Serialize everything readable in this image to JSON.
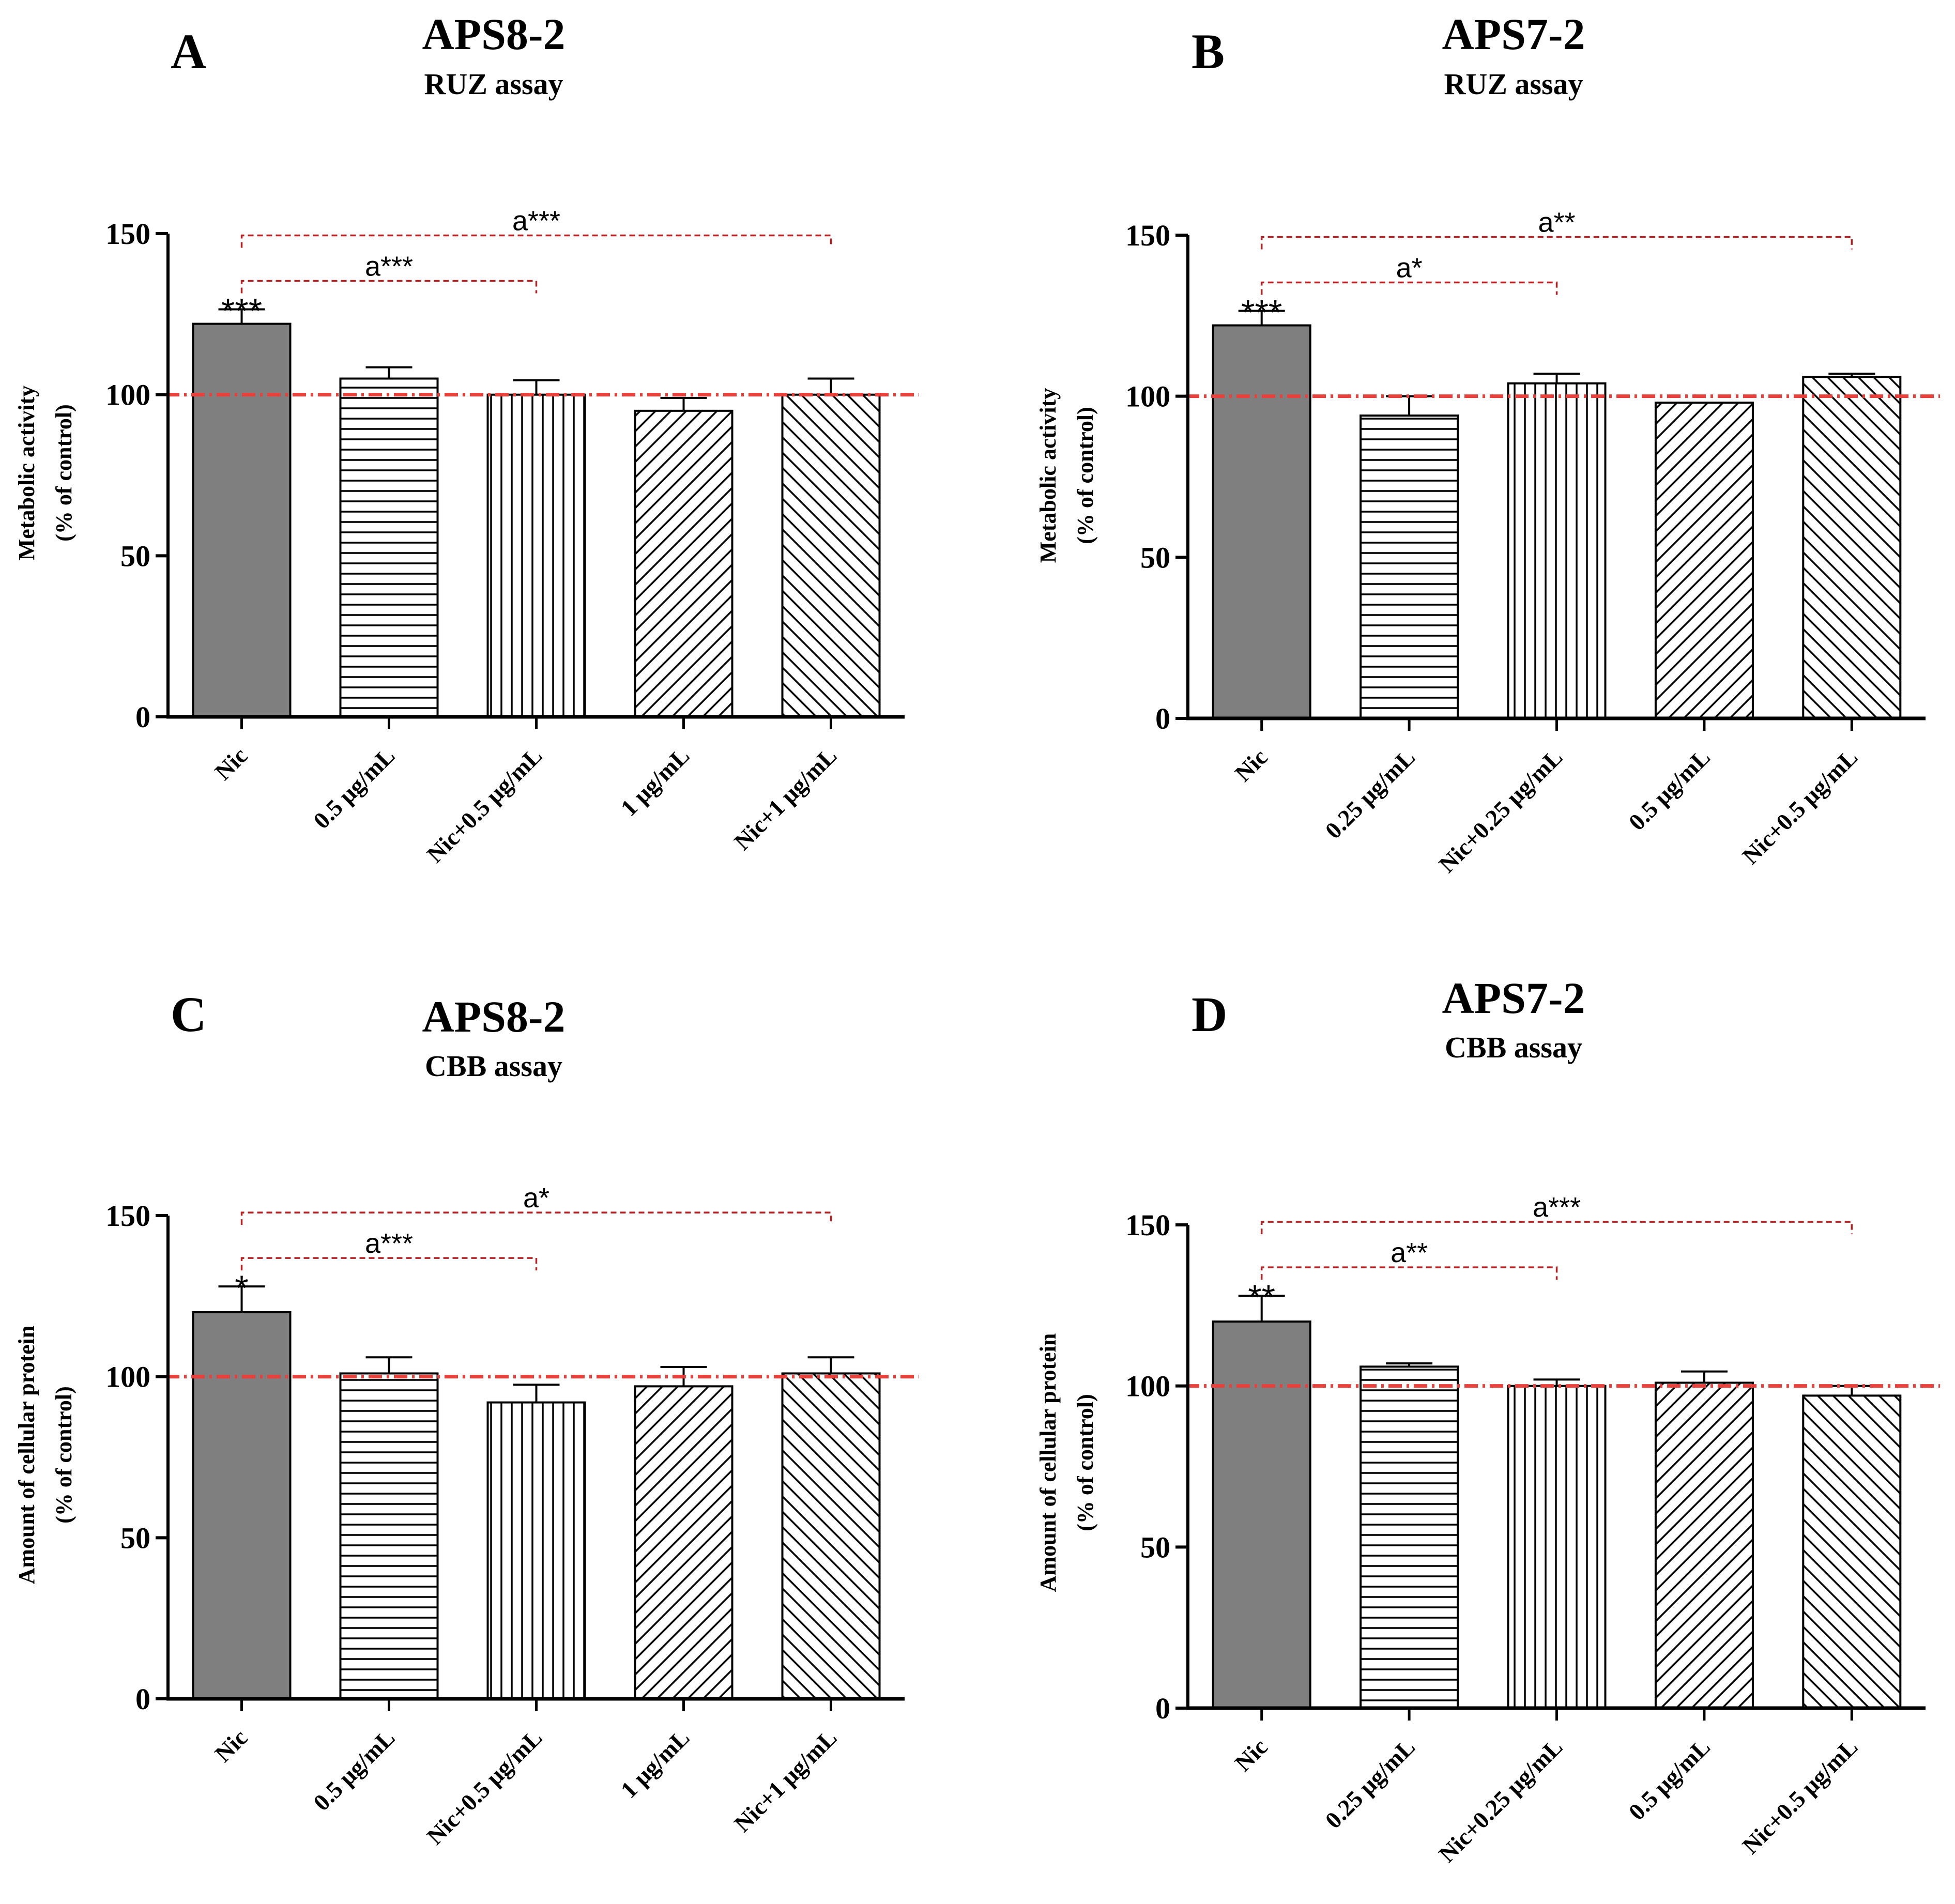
{
  "colors": {
    "nic_bar": "#7f7f7f",
    "reference_line": "#e8413c",
    "bracket": "#b22222",
    "axis": "#000000"
  },
  "chart_data": [
    {
      "panel": "A",
      "type": "bar",
      "title": "APS8-2",
      "subtitle": "RUZ assay",
      "ylabel": [
        "Metabolic activity",
        "(%  of control)"
      ],
      "ylim": [
        0,
        150
      ],
      "yticks": [
        "0",
        "50",
        "100",
        "150"
      ],
      "reference_line": 100,
      "categories": [
        "Nic",
        "0.5 μg/mL",
        "Nic+0.5 μg/mL",
        "1 μg/mL",
        "Nic+1 μg/mL"
      ],
      "patterns": [
        "solid",
        "hlines",
        "vlines",
        "diag-up",
        "diag-down"
      ],
      "values": [
        122,
        105,
        100,
        95,
        100
      ],
      "errors": [
        4.5,
        3.5,
        4.5,
        4,
        5
      ],
      "bar_labels": [
        "***",
        "",
        "",
        "",
        ""
      ],
      "brackets": [
        {
          "from": 0,
          "to": 2,
          "label": "a***",
          "level": 1
        },
        {
          "from": 0,
          "to": 4,
          "label": "a***",
          "level": 2
        }
      ]
    },
    {
      "panel": "B",
      "type": "bar",
      "title": "APS7-2",
      "subtitle": "RUZ assay",
      "ylabel": [
        "Metabolic activity",
        "(%  of control)"
      ],
      "ylim": [
        0,
        150
      ],
      "yticks": [
        "0",
        "50",
        "100",
        "150"
      ],
      "reference_line": 100,
      "categories": [
        "Nic",
        "0.25 μg/mL",
        "Nic+0.25 μg/mL",
        "0.5 μg/mL",
        "Nic+0.5 μg/mL"
      ],
      "patterns": [
        "solid",
        "hlines",
        "vlines",
        "diag-up",
        "diag-down"
      ],
      "values": [
        122,
        94,
        104,
        98,
        106
      ],
      "errors": [
        4.5,
        6,
        3,
        0,
        1
      ],
      "bar_labels": [
        "***",
        "",
        "",
        "",
        ""
      ],
      "brackets": [
        {
          "from": 0,
          "to": 2,
          "label": "a*",
          "level": 1
        },
        {
          "from": 0,
          "to": 4,
          "label": "a**",
          "level": 2
        }
      ]
    },
    {
      "panel": "C",
      "type": "bar",
      "title": "APS8-2",
      "subtitle": "CBB assay",
      "ylabel": [
        "Amount of cellular protein",
        "(%  of control)"
      ],
      "ylim": [
        0,
        150
      ],
      "yticks": [
        "0",
        "50",
        "100",
        "150"
      ],
      "reference_line": 100,
      "categories": [
        "Nic",
        "0.5 μg/mL",
        "Nic+0.5 μg/mL",
        "1 μg/mL",
        "Nic+1 μg/mL"
      ],
      "patterns": [
        "solid",
        "hlines",
        "vlines",
        "diag-up",
        "diag-down"
      ],
      "values": [
        120,
        101,
        92,
        97,
        101
      ],
      "errors": [
        8,
        5,
        5.5,
        6,
        5
      ],
      "bar_labels": [
        "*",
        "",
        "",
        "",
        ""
      ],
      "brackets": [
        {
          "from": 0,
          "to": 2,
          "label": "a***",
          "level": 1
        },
        {
          "from": 0,
          "to": 4,
          "label": "a*",
          "level": 2
        }
      ]
    },
    {
      "panel": "D",
      "type": "bar",
      "title": "APS7-2",
      "subtitle": "CBB assay",
      "ylabel": [
        "Amount of cellular protein",
        "(%  of control)"
      ],
      "ylim": [
        0,
        150
      ],
      "yticks": [
        "0",
        "50",
        "100",
        "150"
      ],
      "reference_line": 100,
      "categories": [
        "Nic",
        "0.25 μg/mL",
        "Nic+0.25 μg/mL",
        "0.5 μg/mL",
        "Nic+0.5 μg/mL"
      ],
      "patterns": [
        "solid",
        "hlines",
        "vlines",
        "diag-up",
        "diag-down"
      ],
      "values": [
        120,
        106,
        100,
        101,
        97
      ],
      "errors": [
        8,
        1,
        2,
        3.5,
        3
      ],
      "bar_labels": [
        "**",
        "",
        "",
        "",
        ""
      ],
      "brackets": [
        {
          "from": 0,
          "to": 2,
          "label": "a**",
          "level": 1
        },
        {
          "from": 0,
          "to": 4,
          "label": "a***",
          "level": 2
        }
      ]
    }
  ]
}
